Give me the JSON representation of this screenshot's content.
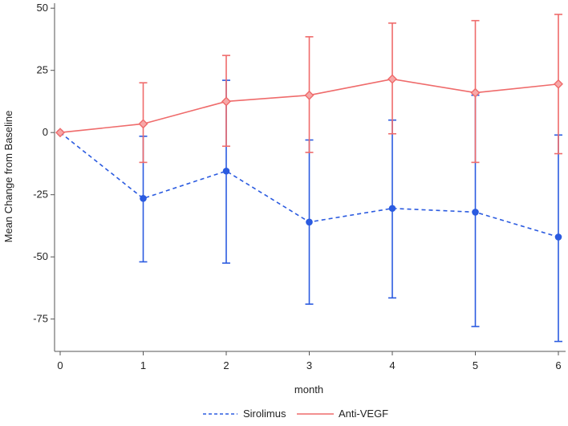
{
  "chart_data": {
    "type": "line",
    "title": "",
    "xlabel": "month",
    "ylabel": "Mean Change from Baseline",
    "x": [
      0,
      1,
      2,
      3,
      4,
      5,
      6
    ],
    "xlim": [
      0,
      6
    ],
    "ylim": [
      -88,
      52
    ],
    "x_ticks": [
      0,
      1,
      2,
      3,
      4,
      5,
      6
    ],
    "y_ticks": [
      50,
      25,
      0,
      -25,
      -50,
      -75
    ],
    "grid": false,
    "legend_position": "bottom",
    "series": [
      {
        "name": "Sirolimus",
        "color": "#2b5be0",
        "line_style": "dashed",
        "marker": "circle",
        "values": [
          0,
          -26.5,
          -15.5,
          -36,
          -30.5,
          -32,
          -42
        ],
        "error_low": [
          0,
          -52,
          -52.5,
          -69,
          -66.5,
          -78,
          -84
        ],
        "error_high": [
          0,
          -1.5,
          21,
          -3,
          5,
          15,
          -1
        ]
      },
      {
        "name": "Anti-VEGF",
        "color": "#ef6b6b",
        "line_style": "solid",
        "marker": "diamond",
        "values": [
          0,
          3.5,
          12.5,
          15,
          21.5,
          16,
          19.5
        ],
        "error_low": [
          0,
          -12,
          -5.5,
          -8,
          -0.5,
          -12,
          -8.5
        ],
        "error_high": [
          0,
          20,
          31,
          38.5,
          44,
          45,
          47.5
        ]
      }
    ]
  }
}
